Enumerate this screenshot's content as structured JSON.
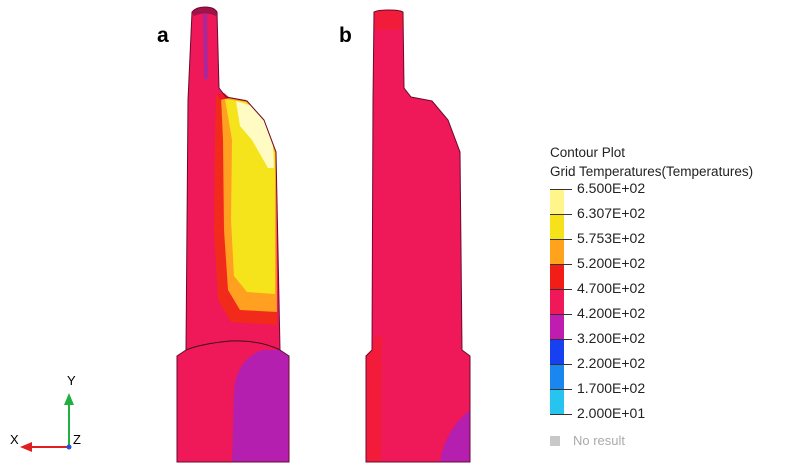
{
  "panels": [
    {
      "label": "a"
    },
    {
      "label": "b"
    }
  ],
  "legend": {
    "title_line1": "Contour Plot",
    "title_line2": "Grid Temperatures(Temperatures)",
    "levels": [
      {
        "value": "6.500E+02",
        "color": "#fffbd0"
      },
      {
        "value": "6.307E+02",
        "color": "#fff58a"
      },
      {
        "value": "5.753E+02",
        "color": "#f5e21a"
      },
      {
        "value": "5.200E+02",
        "color": "#ffa21c"
      },
      {
        "value": "4.700E+02",
        "color": "#f21d17"
      },
      {
        "value": "4.200E+02",
        "color": "#f01858"
      },
      {
        "value": "3.200E+02",
        "color": "#c01db0"
      },
      {
        "value": "2.200E+02",
        "color": "#1740f0"
      },
      {
        "value": "1.700E+02",
        "color": "#1a86f0"
      },
      {
        "value": "2.000E+01",
        "color": "#27c4f0"
      }
    ],
    "no_result": "No result"
  },
  "triad": {
    "x": "X",
    "y": "Y",
    "z": "Z"
  }
}
